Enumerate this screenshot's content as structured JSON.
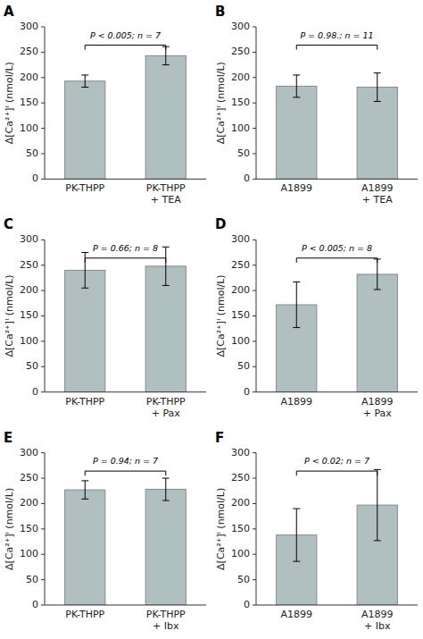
{
  "chart_data": [
    {
      "type": "bar",
      "title": "A",
      "annotations": [
        "P < 0.005;  n = 7"
      ],
      "categories": [
        "PK-THPP",
        "PK-THPP\n+ TEA"
      ],
      "values": [
        193,
        243
      ],
      "errors": [
        12,
        18
      ],
      "color": "#b0c0c0",
      "ylabel": "Δ[Ca²⁺]ᴵ (nmol/L)",
      "ylim": [
        0,
        300
      ],
      "yticks": [
        0,
        50,
        100,
        150,
        200,
        250,
        300
      ]
    },
    {
      "type": "bar",
      "title": "B",
      "annotations": [
        "P = 0.98.;  n = 11"
      ],
      "categories": [
        "A1899",
        "A1899\n+ TEA"
      ],
      "values": [
        183,
        181
      ],
      "errors": [
        22,
        28
      ],
      "color": "#b0c0c0",
      "ylabel": "Δ[Ca²⁺]ᴵ (nmol/L)",
      "ylim": [
        0,
        300
      ],
      "yticks": [
        0,
        50,
        100,
        150,
        200,
        250,
        300
      ]
    },
    {
      "type": "bar",
      "title": "C",
      "annotations": [
        "P = 0.66;  n = 8"
      ],
      "categories": [
        "PK-THPP",
        "PK-THPP\n+ Pax"
      ],
      "values": [
        240,
        248
      ],
      "errors": [
        35,
        38
      ],
      "color": "#b0c0c0",
      "ylabel": "Δ[Ca²⁺]ᴵ (nmol/L)",
      "ylim": [
        0,
        300
      ],
      "yticks": [
        0,
        50,
        100,
        150,
        200,
        250,
        300
      ]
    },
    {
      "type": "bar",
      "title": "D",
      "annotations": [
        "P < 0.005;  n = 8"
      ],
      "categories": [
        "A1899",
        "A1899\n+ Pax"
      ],
      "values": [
        172,
        232
      ],
      "errors": [
        45,
        30
      ],
      "color": "#b0c0c0",
      "ylabel": "Δ[Ca²⁺]ᴵ (nmol/L)",
      "ylim": [
        0,
        300
      ],
      "yticks": [
        0,
        50,
        100,
        150,
        200,
        250,
        300
      ]
    },
    {
      "type": "bar",
      "title": "E",
      "annotations": [
        "P = 0.94;  n = 7"
      ],
      "categories": [
        "PK-THPP",
        "PK-THPP\n+ Ibx"
      ],
      "values": [
        227,
        228
      ],
      "errors": [
        18,
        22
      ],
      "color": "#b0c0c0",
      "ylabel": "Δ[Ca²⁺]ᴵ (nmol/L)",
      "ylim": [
        0,
        300
      ],
      "yticks": [
        0,
        50,
        100,
        150,
        200,
        250,
        300
      ]
    },
    {
      "type": "bar",
      "title": "F",
      "annotations": [
        "P < 0.02;  n = 7"
      ],
      "categories": [
        "A1899",
        "A1899\n+ Ibx"
      ],
      "values": [
        138,
        197
      ],
      "errors": [
        52,
        70
      ],
      "color": "#b0c0c0",
      "ylabel": "Δ[Ca²⁺]ᴵ (nmol/L)",
      "ylim": [
        0,
        300
      ],
      "yticks": [
        0,
        50,
        100,
        150,
        200,
        250,
        300
      ]
    }
  ]
}
